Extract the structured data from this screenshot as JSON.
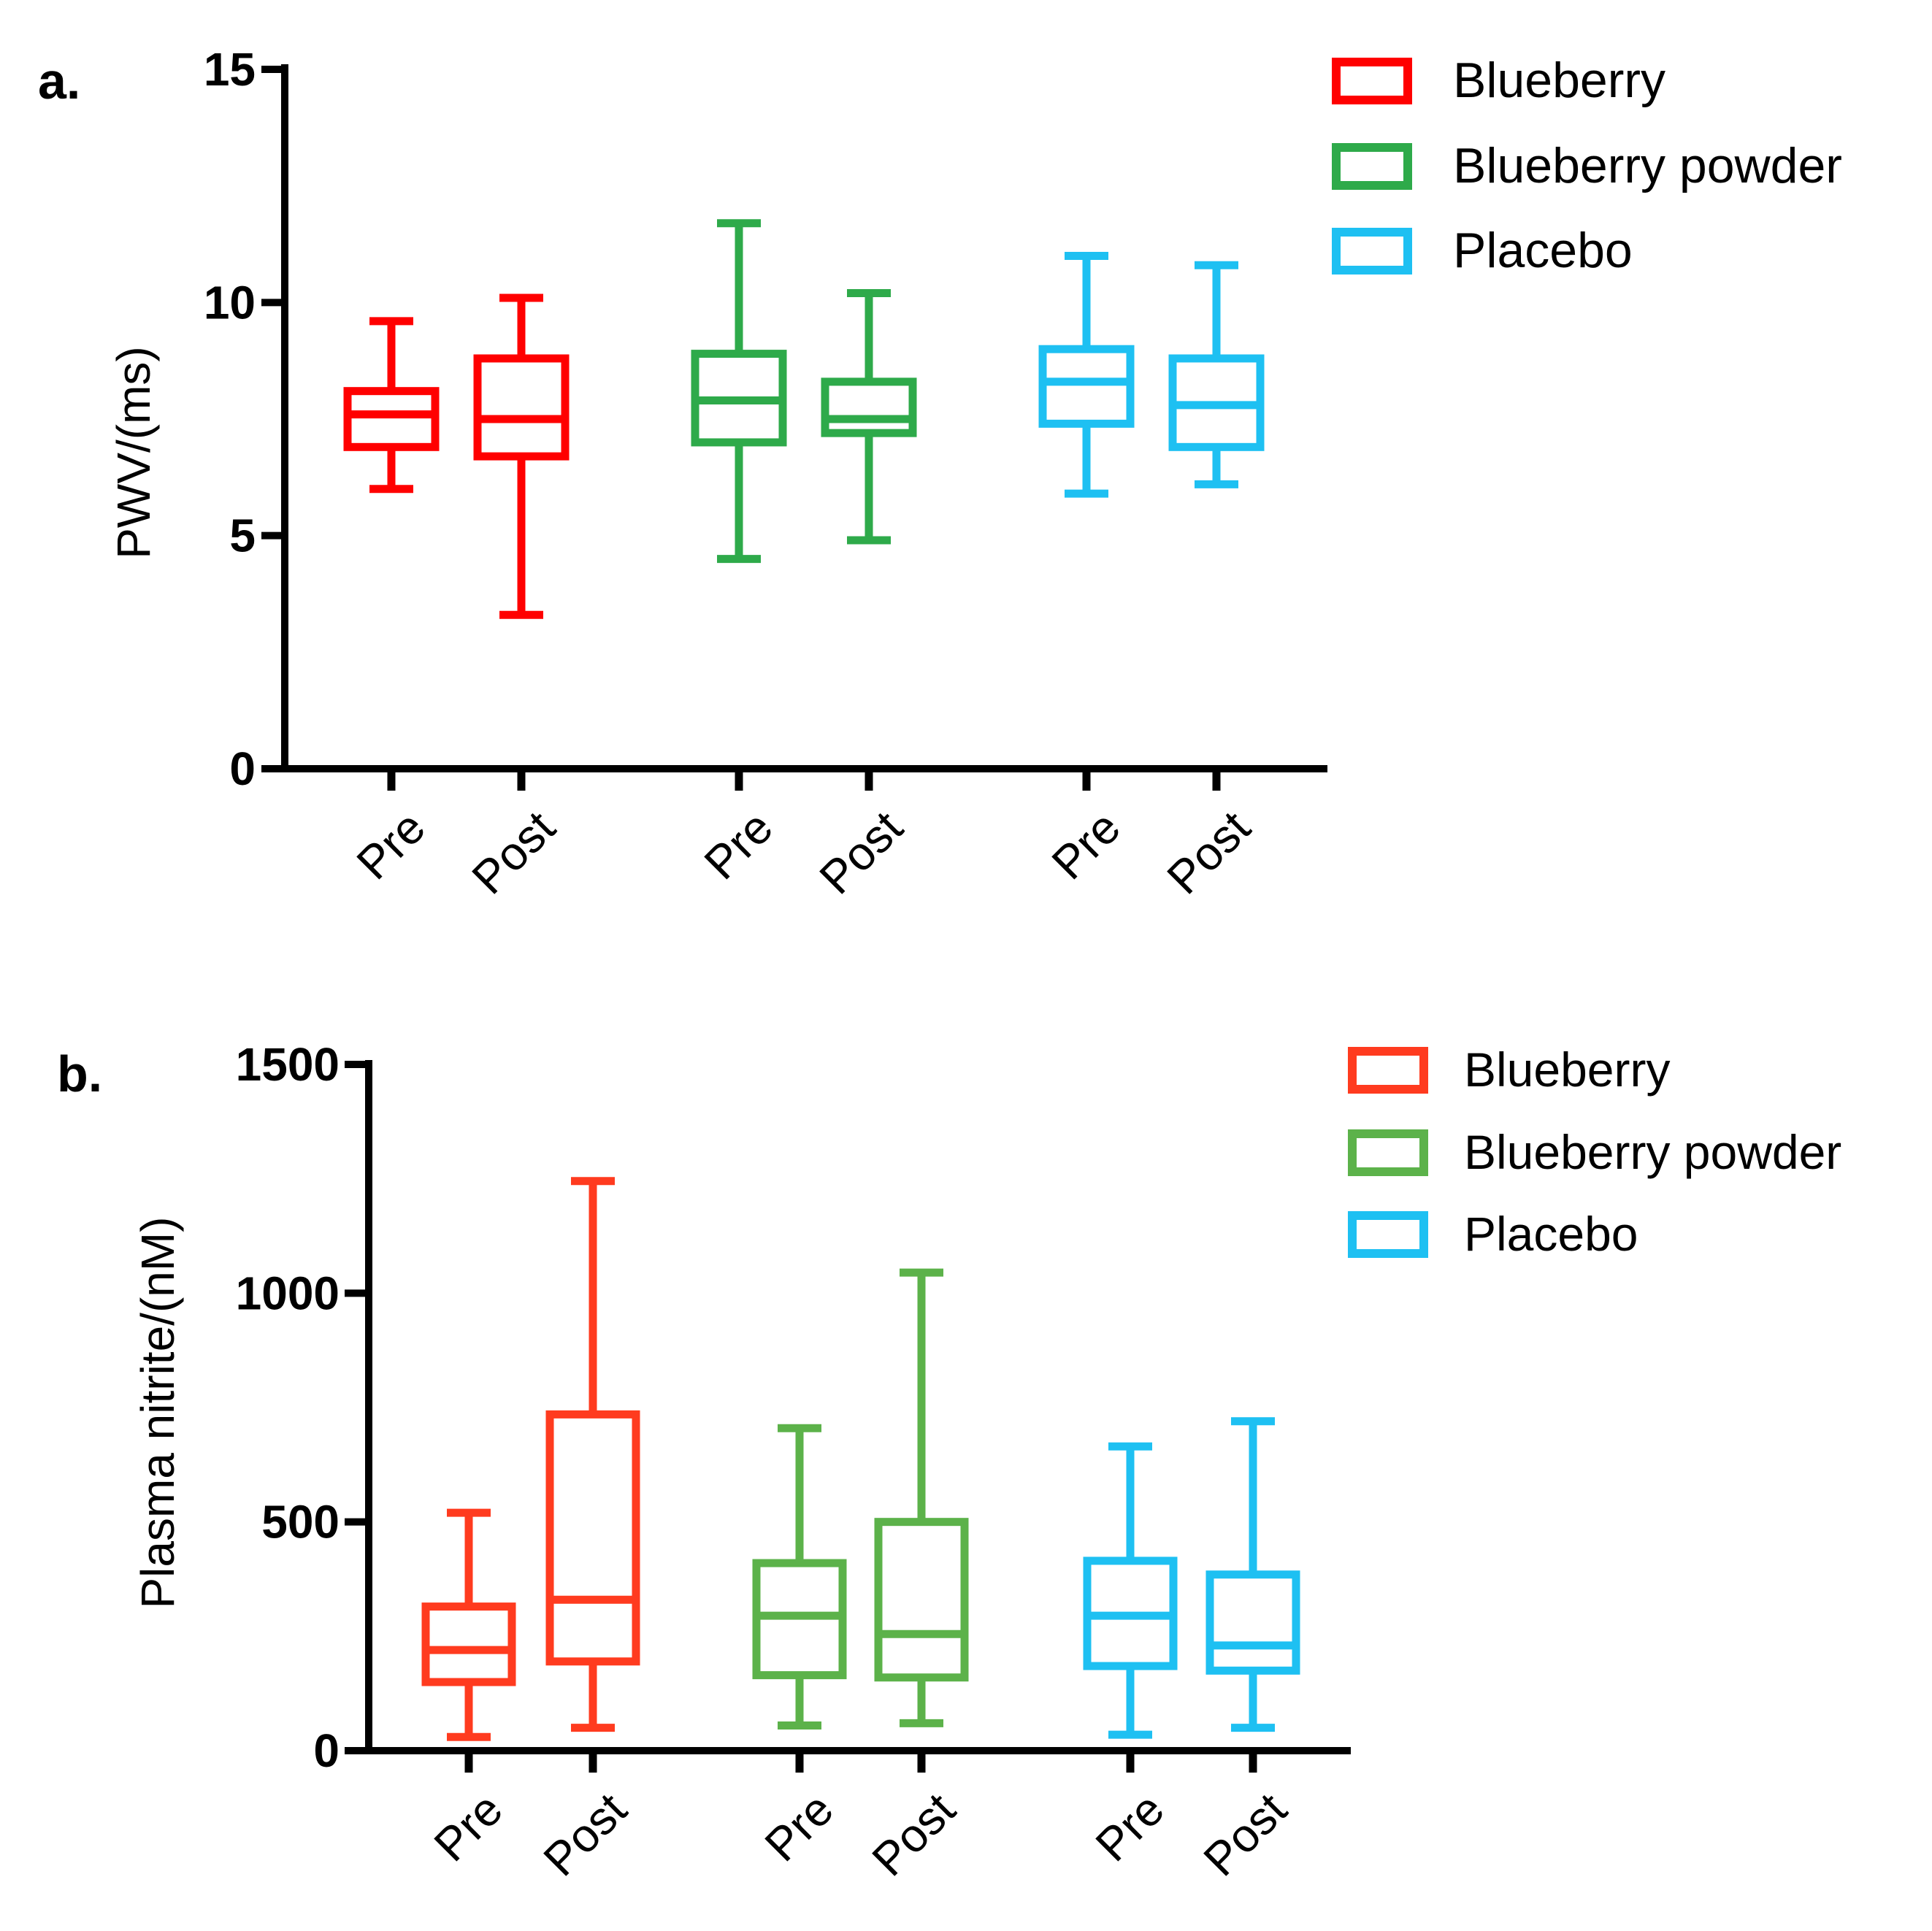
{
  "chart_data": [
    {
      "type": "box",
      "panel_label": "a.",
      "ylabel": "PWV/(ms)",
      "xlabel": "",
      "ylim": [
        0,
        15
      ],
      "yticks": [
        0,
        5,
        10,
        15
      ],
      "grid": false,
      "legend_position": "top-right",
      "legend": [
        {
          "name": "Blueberry",
          "color": "#ff0000"
        },
        {
          "name": "Blueberry powder",
          "color": "#2eaa4a"
        },
        {
          "name": "Placebo",
          "color": "#1ec0f2"
        }
      ],
      "boxes": [
        {
          "group": "Blueberry",
          "label": "Pre",
          "min": 6.0,
          "q1": 6.9,
          "median": 7.6,
          "q3": 8.1,
          "max": 9.6
        },
        {
          "group": "Blueberry",
          "label": "Post",
          "min": 3.3,
          "q1": 6.7,
          "median": 7.5,
          "q3": 8.8,
          "max": 10.1
        },
        {
          "group": "Blueberry powder",
          "label": "Pre",
          "min": 4.5,
          "q1": 7.0,
          "median": 7.9,
          "q3": 8.9,
          "max": 11.7
        },
        {
          "group": "Blueberry powder",
          "label": "Post",
          "min": 4.9,
          "q1": 7.2,
          "median": 7.5,
          "q3": 8.3,
          "max": 10.2
        },
        {
          "group": "Placebo",
          "label": "Pre",
          "min": 5.9,
          "q1": 7.4,
          "median": 8.3,
          "q3": 9.0,
          "max": 11.0
        },
        {
          "group": "Placebo",
          "label": "Post",
          "min": 6.1,
          "q1": 6.9,
          "median": 7.8,
          "q3": 8.8,
          "max": 10.8
        }
      ]
    },
    {
      "type": "box",
      "panel_label": "b.",
      "ylabel": "Plasma nitrite/(nM)",
      "xlabel": "",
      "ylim": [
        0,
        1500
      ],
      "yticks": [
        0,
        500,
        1000,
        1500
      ],
      "grid": false,
      "legend_position": "top-right",
      "legend": [
        {
          "name": "Blueberry",
          "color": "#ff3b1f"
        },
        {
          "name": "Blueberry powder",
          "color": "#5cb24a"
        },
        {
          "name": "Placebo",
          "color": "#1ec0f2"
        }
      ],
      "boxes": [
        {
          "group": "Blueberry",
          "label": "Pre",
          "min": 30,
          "q1": 150,
          "median": 220,
          "q3": 315,
          "max": 520
        },
        {
          "group": "Blueberry",
          "label": "Post",
          "min": 50,
          "q1": 195,
          "median": 330,
          "q3": 735,
          "max": 1245
        },
        {
          "group": "Blueberry powder",
          "label": "Pre",
          "min": 55,
          "q1": 165,
          "median": 295,
          "q3": 410,
          "max": 705
        },
        {
          "group": "Blueberry powder",
          "label": "Post",
          "min": 60,
          "q1": 160,
          "median": 255,
          "q3": 500,
          "max": 1045
        },
        {
          "group": "Placebo",
          "label": "Pre",
          "min": 35,
          "q1": 185,
          "median": 295,
          "q3": 415,
          "max": 665
        },
        {
          "group": "Placebo",
          "label": "Post",
          "min": 50,
          "q1": 175,
          "median": 230,
          "q3": 385,
          "max": 720
        }
      ]
    }
  ]
}
